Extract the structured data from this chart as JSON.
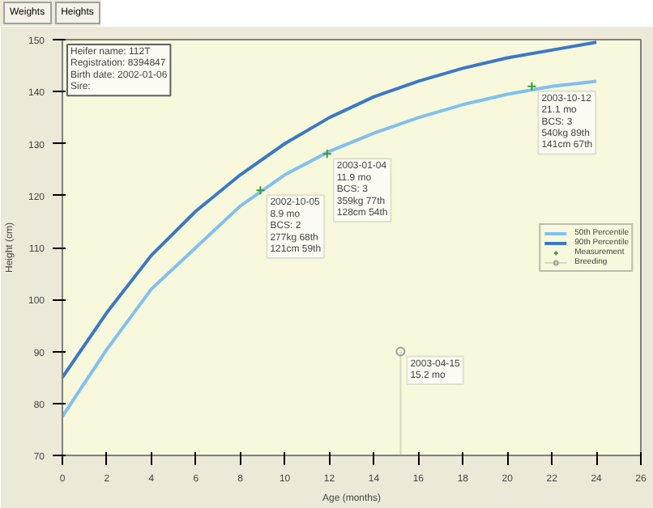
{
  "chart_data": {
    "type": "line",
    "xlabel": "Age (months)",
    "ylabel": "Height (cm)",
    "xlim": [
      0,
      26
    ],
    "xticks": [
      0,
      2,
      4,
      6,
      8,
      10,
      12,
      14,
      16,
      18,
      20,
      22,
      24,
      26
    ],
    "ylim": [
      70,
      150
    ],
    "yticks": [
      70,
      80,
      90,
      100,
      110,
      120,
      130,
      140,
      150
    ],
    "grid": false,
    "legend": "right",
    "series": [
      {
        "name": "50th Percentile",
        "color": "#80c0f0",
        "marker": "none",
        "x": [
          0,
          2,
          4,
          6,
          8,
          10,
          12,
          14,
          16,
          18,
          20,
          22,
          24
        ],
        "values": [
          77.5,
          90.4,
          102,
          110,
          118,
          124,
          128.5,
          132,
          135,
          137.5,
          139.5,
          141,
          142
        ]
      },
      {
        "name": "90th Percentile",
        "color": "#3a78c8",
        "marker": "none",
        "x": [
          0,
          2,
          4,
          6,
          8,
          10,
          12,
          14,
          16,
          18,
          20,
          22,
          24
        ],
        "values": [
          85,
          97.5,
          108.5,
          117,
          124,
          130,
          135,
          139,
          142,
          144.5,
          146.5,
          148,
          149.5
        ]
      },
      {
        "name": "Measurement",
        "type": "scatter",
        "color": "#3c9c3c",
        "marker": "cross",
        "x": [
          8.9,
          11.9,
          21.1
        ],
        "values": [
          121,
          128,
          141
        ]
      },
      {
        "name": "Breeding",
        "type": "lollipop",
        "color": "#a0a0a0",
        "marker": "circle",
        "x": [
          15.2
        ],
        "values": [
          90
        ]
      }
    ],
    "annotations": [
      "Weights",
      "Heights",
      "Heifer name: 112T\nRegistration: 8394847\nBirth date: 2002-01-06\nSire:",
      {
        "text": "2002-10-05\n8.9 mo\nBCS: 2\n277kg 68th\n121cm 59th",
        "x": 8.9,
        "y": 121
      },
      {
        "text": "2003-01-04\n11.9 mo\nBCS: 3\n359kg 77th\n128cm 54th",
        "x": 11.9,
        "y": 128
      },
      {
        "text": "2003-04-15\n15.2 mo",
        "x": 15.2,
        "y": 90
      },
      {
        "text": "2003-10-12\n21.1 mo\nBCS: 3\n540kg 89th\n141cm 67th",
        "x": 21.1,
        "y": 141
      }
    ]
  }
}
